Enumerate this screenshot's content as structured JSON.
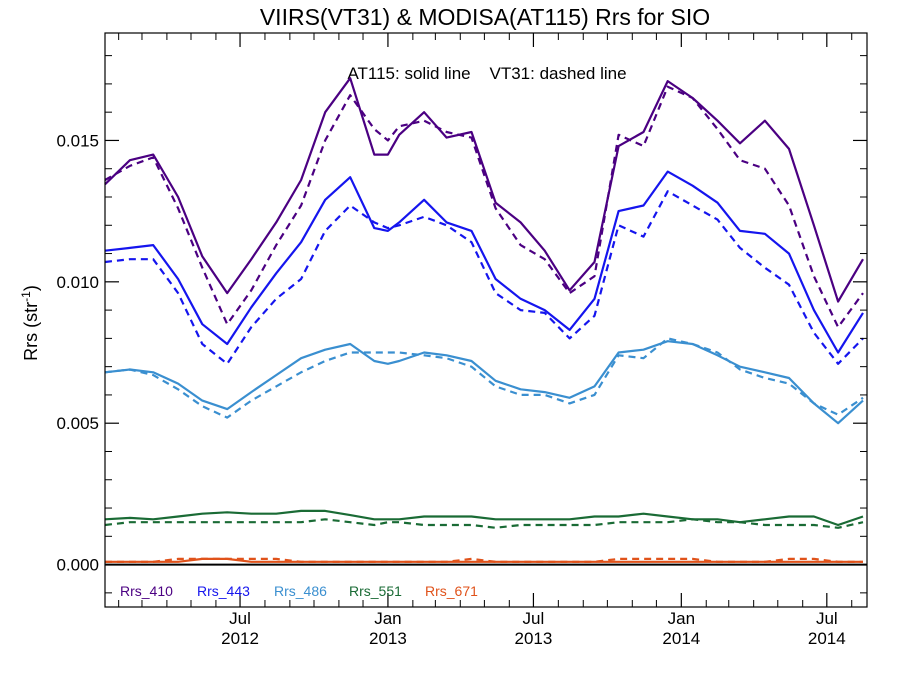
{
  "chart_data": {
    "type": "line",
    "title": "VIIRS(VT31) & MODISA(AT115)  Rrs for SIO",
    "annotation": "AT115: solid line    VT31: dashed line",
    "ylabel": "Rrs (str",
    "ylabel_sup": "-1",
    "ylabel_close": ")",
    "ylim": [
      -0.0015,
      0.0188
    ],
    "yticks": [
      0.0,
      0.005,
      0.01,
      0.015
    ],
    "ytick_labels": [
      "0.000",
      "0.005",
      "0.010",
      "0.015"
    ],
    "xlim": [
      "2012-01-15",
      "2014-08-20"
    ],
    "xticks": [
      {
        "date": "2012-07-01",
        "month": "Jul",
        "year": "2012"
      },
      {
        "date": "2013-01-01",
        "month": "Jan",
        "year": "2013"
      },
      {
        "date": "2013-07-01",
        "month": "Jul",
        "year": "2013"
      },
      {
        "date": "2014-01-01",
        "month": "Jan",
        "year": "2014"
      },
      {
        "date": "2014-07-01",
        "month": "Jul",
        "year": "2014"
      }
    ],
    "x": [
      "2012-01-15",
      "2012-02-15",
      "2012-03-15",
      "2012-04-15",
      "2012-05-15",
      "2012-06-15",
      "2012-07-15",
      "2012-08-15",
      "2012-09-15",
      "2012-10-15",
      "2012-11-15",
      "2012-12-15",
      "2013-01-01",
      "2013-01-15",
      "2013-02-15",
      "2013-03-15",
      "2013-04-15",
      "2013-05-15",
      "2013-06-15",
      "2013-07-15",
      "2013-08-15",
      "2013-09-15",
      "2013-10-15",
      "2013-11-15",
      "2013-12-15",
      "2014-01-15",
      "2014-02-15",
      "2014-03-15",
      "2014-04-15",
      "2014-05-15",
      "2014-06-15",
      "2014-07-15",
      "2014-08-15"
    ],
    "series": [
      {
        "name": "Rrs_410",
        "sensor": "AT115",
        "style": "solid",
        "color": "#4b0082",
        "values": [
          0.01345,
          0.0143,
          0.0145,
          0.013,
          0.0109,
          0.0096,
          0.0108,
          0.0121,
          0.0136,
          0.016,
          0.0172,
          0.0145,
          0.0145,
          0.0152,
          0.016,
          0.0151,
          0.0153,
          0.0128,
          0.0121,
          0.0111,
          0.0097,
          0.0107,
          0.0148,
          0.0153,
          0.0171,
          0.0165,
          0.0157,
          0.0149,
          0.0157,
          0.0147,
          0.012,
          0.0093,
          0.0108
        ]
      },
      {
        "name": "Rrs_410",
        "sensor": "VT31",
        "style": "dashed",
        "color": "#4b0082",
        "values": [
          0.0136,
          0.0141,
          0.0144,
          0.0126,
          0.0105,
          0.0085,
          0.0097,
          0.0113,
          0.0127,
          0.015,
          0.0166,
          0.0154,
          0.015,
          0.0155,
          0.0157,
          0.0153,
          0.0151,
          0.0126,
          0.0113,
          0.0108,
          0.0096,
          0.0102,
          0.0152,
          0.0148,
          0.0169,
          0.0165,
          0.0154,
          0.0143,
          0.014,
          0.0127,
          0.0102,
          0.0084,
          0.0096
        ]
      },
      {
        "name": "Rrs_443",
        "sensor": "AT115",
        "style": "solid",
        "color": "#1515ee",
        "values": [
          0.0111,
          0.0112,
          0.0113,
          0.0101,
          0.0085,
          0.0078,
          0.0091,
          0.0103,
          0.0114,
          0.0129,
          0.0137,
          0.0119,
          0.0118,
          0.0121,
          0.0129,
          0.0121,
          0.0118,
          0.0101,
          0.0094,
          0.009,
          0.0083,
          0.0094,
          0.0125,
          0.0127,
          0.0139,
          0.0134,
          0.0128,
          0.0118,
          0.0117,
          0.011,
          0.009,
          0.0075,
          0.0089
        ]
      },
      {
        "name": "Rrs_443",
        "sensor": "VT31",
        "style": "dashed",
        "color": "#1515ee",
        "values": [
          0.0107,
          0.0108,
          0.0108,
          0.0096,
          0.0078,
          0.0071,
          0.0084,
          0.0094,
          0.0101,
          0.0118,
          0.0127,
          0.0121,
          0.0119,
          0.012,
          0.0123,
          0.012,
          0.0114,
          0.0096,
          0.009,
          0.0089,
          0.008,
          0.0088,
          0.012,
          0.0116,
          0.0132,
          0.0127,
          0.0122,
          0.0112,
          0.0105,
          0.0099,
          0.0082,
          0.0071,
          0.008
        ]
      },
      {
        "name": "Rrs_486",
        "sensor": "AT115",
        "style": "solid",
        "color": "#3a8fd0",
        "values": [
          0.0068,
          0.0069,
          0.0068,
          0.0064,
          0.0058,
          0.0055,
          0.0061,
          0.0067,
          0.0073,
          0.0076,
          0.0078,
          0.0072,
          0.0071,
          0.0072,
          0.0075,
          0.0074,
          0.0072,
          0.0065,
          0.0062,
          0.0061,
          0.0059,
          0.0063,
          0.0075,
          0.0076,
          0.0079,
          0.0078,
          0.0074,
          0.007,
          0.0068,
          0.0066,
          0.0057,
          0.005,
          0.0058
        ]
      },
      {
        "name": "Rrs_486",
        "sensor": "VT31",
        "style": "dashed",
        "color": "#3a8fd0",
        "values": [
          0.0068,
          0.0069,
          0.0067,
          0.0062,
          0.0056,
          0.0052,
          0.0058,
          0.0063,
          0.0068,
          0.0072,
          0.0075,
          0.0075,
          0.0075,
          0.0075,
          0.0074,
          0.0073,
          0.007,
          0.0063,
          0.006,
          0.006,
          0.0057,
          0.006,
          0.0074,
          0.0073,
          0.008,
          0.0078,
          0.0075,
          0.0069,
          0.0066,
          0.0064,
          0.0057,
          0.0053,
          0.0059
        ]
      },
      {
        "name": "Rrs_551",
        "sensor": "AT115",
        "style": "solid",
        "color": "#1a6b35",
        "values": [
          0.0016,
          0.00165,
          0.0016,
          0.0017,
          0.0018,
          0.00185,
          0.0018,
          0.0018,
          0.0019,
          0.0019,
          0.00175,
          0.0016,
          0.0016,
          0.0016,
          0.0017,
          0.0017,
          0.0017,
          0.0016,
          0.0016,
          0.0016,
          0.0016,
          0.0017,
          0.0017,
          0.0018,
          0.0017,
          0.0016,
          0.0016,
          0.0015,
          0.0016,
          0.0017,
          0.0017,
          0.0014,
          0.0017
        ]
      },
      {
        "name": "Rrs_551",
        "sensor": "VT31",
        "style": "dashed",
        "color": "#1a6b35",
        "values": [
          0.0014,
          0.0015,
          0.0015,
          0.0015,
          0.0015,
          0.0015,
          0.0015,
          0.0015,
          0.0015,
          0.0016,
          0.0015,
          0.0014,
          0.0015,
          0.0015,
          0.0014,
          0.0014,
          0.0014,
          0.0013,
          0.0014,
          0.0014,
          0.0014,
          0.0014,
          0.0015,
          0.0015,
          0.0015,
          0.0016,
          0.0015,
          0.0015,
          0.0014,
          0.0014,
          0.0014,
          0.0013,
          0.0015
        ]
      },
      {
        "name": "Rrs_671",
        "sensor": "AT115",
        "style": "solid",
        "color": "#e0521a",
        "values": [
          0.0001,
          0.0001,
          0.0001,
          0.0001,
          0.0002,
          0.0002,
          0.0001,
          0.0001,
          0.0001,
          0.0001,
          0.0001,
          0.0001,
          0.0001,
          0.0001,
          0.0001,
          0.0001,
          0.0001,
          0.0001,
          0.0001,
          0.0001,
          0.0001,
          0.0001,
          0.0001,
          0.0001,
          0.0001,
          0.0001,
          0.0001,
          0.0001,
          0.0001,
          0.0001,
          0.0001,
          0.0001,
          0.0001
        ]
      },
      {
        "name": "Rrs_671",
        "sensor": "VT31",
        "style": "dashed",
        "color": "#e0521a",
        "values": [
          0.0001,
          0.0001,
          0.0001,
          0.0002,
          0.0002,
          0.0002,
          0.0002,
          0.0002,
          0.0001,
          0.0001,
          0.0001,
          0.0001,
          0.0001,
          0.0001,
          0.0001,
          0.0001,
          0.0002,
          0.0001,
          0.0001,
          0.0001,
          0.0001,
          0.0001,
          0.0002,
          0.0002,
          0.0002,
          0.0002,
          0.0001,
          0.0001,
          0.0001,
          0.0002,
          0.0002,
          0.0001,
          0.0001
        ]
      }
    ],
    "legend": [
      {
        "label": "Rrs_410",
        "color": "#4b0082"
      },
      {
        "label": "Rrs_443",
        "color": "#1515ee"
      },
      {
        "label": "Rrs_486",
        "color": "#3a8fd0"
      },
      {
        "label": "Rrs_551",
        "color": "#1a6b35"
      },
      {
        "label": "Rrs_671",
        "color": "#e0521a"
      }
    ],
    "legend_placement": "bottom-left",
    "zero_line": true,
    "grid": false
  }
}
